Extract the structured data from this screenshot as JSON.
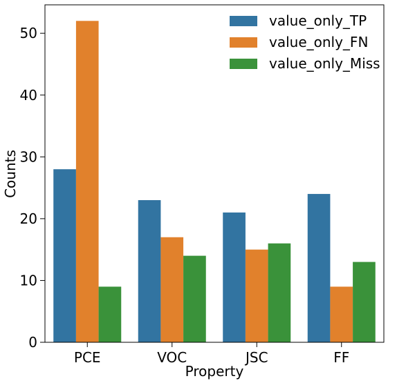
{
  "chart_data": {
    "type": "bar",
    "title": "",
    "xlabel": "Property",
    "ylabel": "Counts",
    "categories": [
      "PCE",
      "VOC",
      "JSC",
      "FF"
    ],
    "series": [
      {
        "name": "value_only_TP",
        "color": "#3274a1",
        "values": [
          28,
          23,
          21,
          24
        ]
      },
      {
        "name": "value_only_FN",
        "color": "#e1812c",
        "values": [
          52,
          17,
          15,
          9
        ]
      },
      {
        "name": "value_only_Miss",
        "color": "#3a923a",
        "values": [
          9,
          14,
          16,
          13
        ]
      }
    ],
    "ylim": [
      0,
      54.6
    ],
    "yticks": [
      "0",
      "10",
      "20",
      "30",
      "40",
      "50"
    ],
    "grid": false,
    "legend_position": "top-right"
  }
}
